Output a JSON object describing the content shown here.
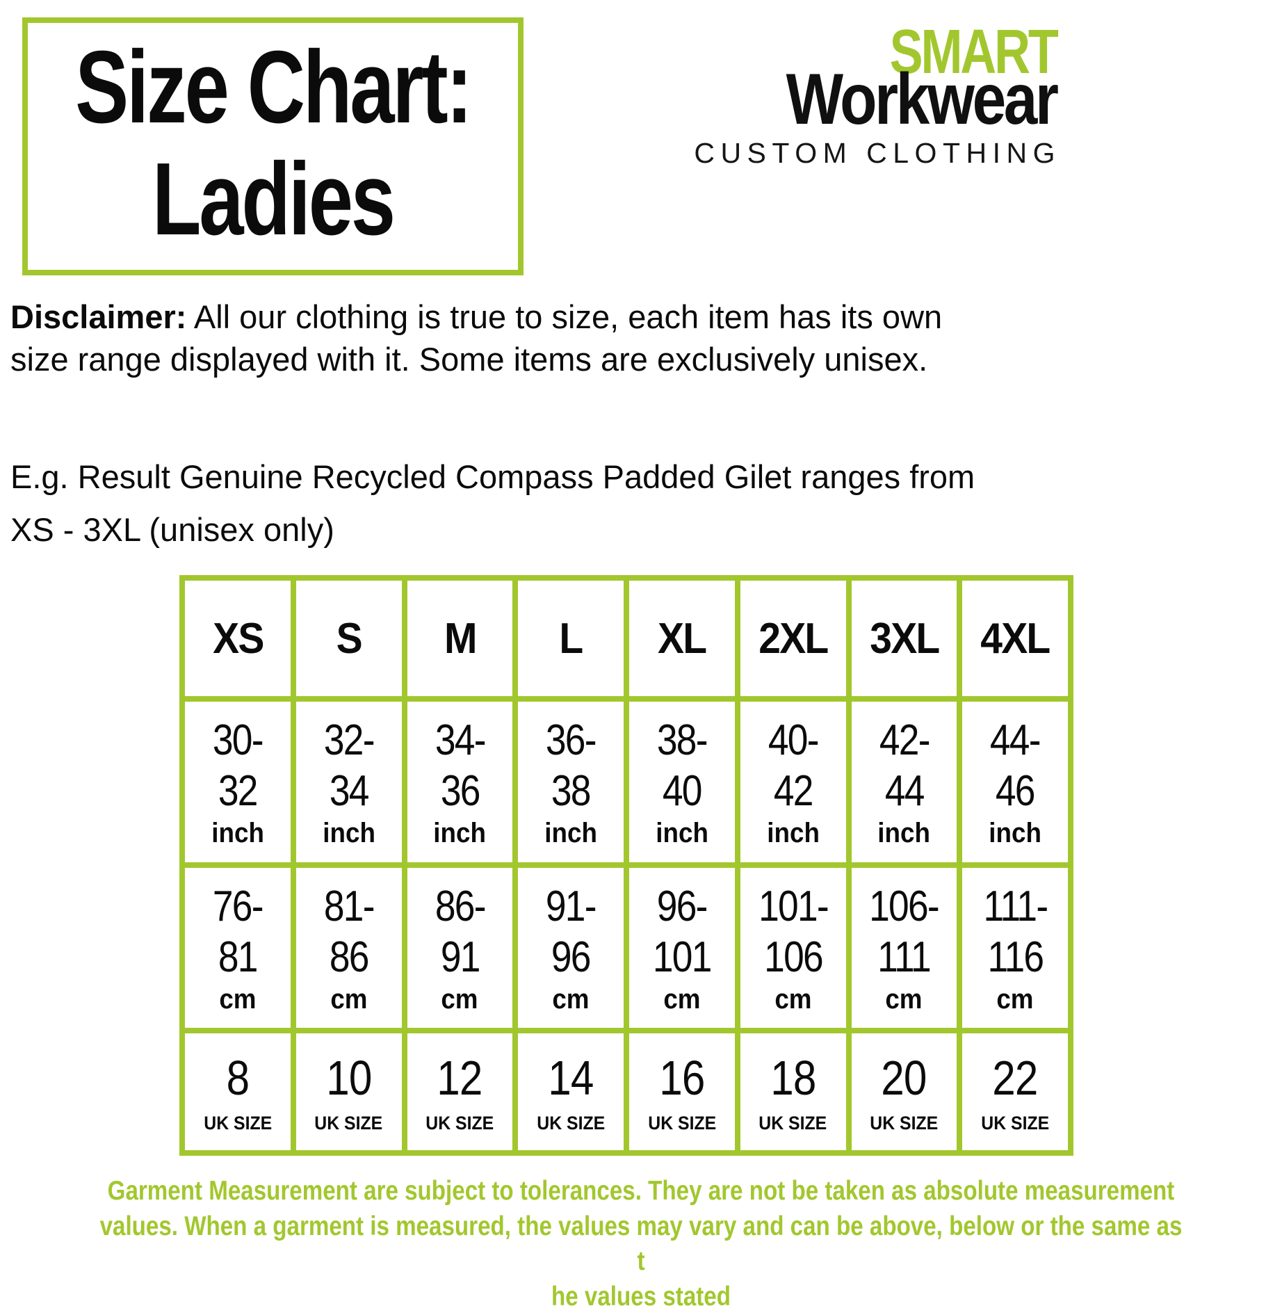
{
  "title_box": {
    "line1": "Size Chart:",
    "line2": "Ladies"
  },
  "logo": {
    "smart": "SMART",
    "workwear": "Workwear",
    "custom": "CUSTOM CLOTHING"
  },
  "disclaimer": {
    "label": "Disclaimer:",
    "line1_rest": " All our clothing is true to size, each item has its own",
    "line2": "size range displayed with it. Some items are exclusively unisex."
  },
  "example": {
    "line1": "E.g. Result Genuine Recycled Compass Padded Gilet ranges from",
    "line2": "XS - 3XL (unisex only)"
  },
  "size_table": {
    "headers": [
      "XS",
      "S",
      "M",
      "L",
      "XL",
      "2XL",
      "3XL",
      "4XL"
    ],
    "rows": [
      {
        "unit": "inch",
        "values": [
          "30-\n32",
          "32-\n34",
          "34-\n36",
          "36-\n38",
          "38-\n40",
          "40-\n42",
          "42-\n44",
          "44-\n46"
        ]
      },
      {
        "unit": "cm",
        "values": [
          "76-\n81",
          "81-\n86",
          "86-\n91",
          "91-\n96",
          "96-\n101",
          "101-\n106",
          "106-\n111",
          "111-\n116"
        ]
      },
      {
        "unit": "UK SIZE",
        "values": [
          "8",
          "10",
          "12",
          "14",
          "16",
          "18",
          "20",
          "22"
        ]
      }
    ]
  },
  "footer": {
    "text": "Garment Measurement are subject to tolerances. They are not be taken as absolute measurement\nvalues. When a garment is measured, the values may vary and can be above, below or the same as t\nhe values stated"
  },
  "colors": {
    "brand_green": "#a2c72e",
    "text_black": "#0b0b0b"
  }
}
